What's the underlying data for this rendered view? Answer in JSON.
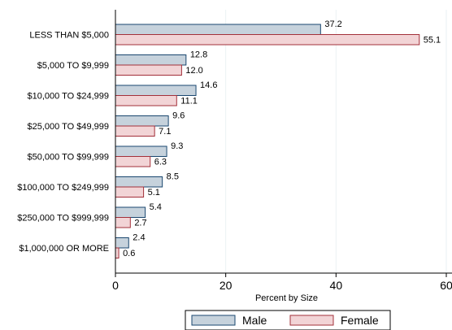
{
  "chart_data": {
    "type": "bar",
    "orientation": "horizontal",
    "categories": [
      "LESS THAN $5,000",
      "$5,000 TO $9,999",
      "$10,000 TO $24,999",
      "$25,000 TO $49,999",
      "$50,000 TO $99,999",
      "$100,000 TO $249,999",
      "$250,000 TO $999,999",
      "$1,000,000 OR MORE"
    ],
    "series": [
      {
        "name": "Male",
        "values": [
          37.2,
          12.8,
          14.6,
          9.6,
          9.3,
          8.5,
          5.4,
          2.4
        ],
        "value_labels": [
          "37.2",
          "12.8",
          "14.6",
          "9.6",
          "9.3",
          "8.5",
          "5.4",
          "2.4"
        ],
        "fill": "#c6d2dc",
        "stroke": "#1a476f"
      },
      {
        "name": "Female",
        "values": [
          55.1,
          12.0,
          11.1,
          7.1,
          6.3,
          5.1,
          2.7,
          0.6
        ],
        "value_labels": [
          "55.1",
          "12.0",
          "11.1",
          "7.1",
          "6.3",
          "5.1",
          "2.7",
          "0.6"
        ],
        "fill": "#f2d4d6",
        "stroke": "#a3303a"
      }
    ],
    "xlabel": "Percent by Size",
    "xlim": [
      0,
      60
    ],
    "xticks": [
      "0",
      "20",
      "40",
      "60"
    ],
    "grid": true,
    "legend_position": "bottom"
  }
}
